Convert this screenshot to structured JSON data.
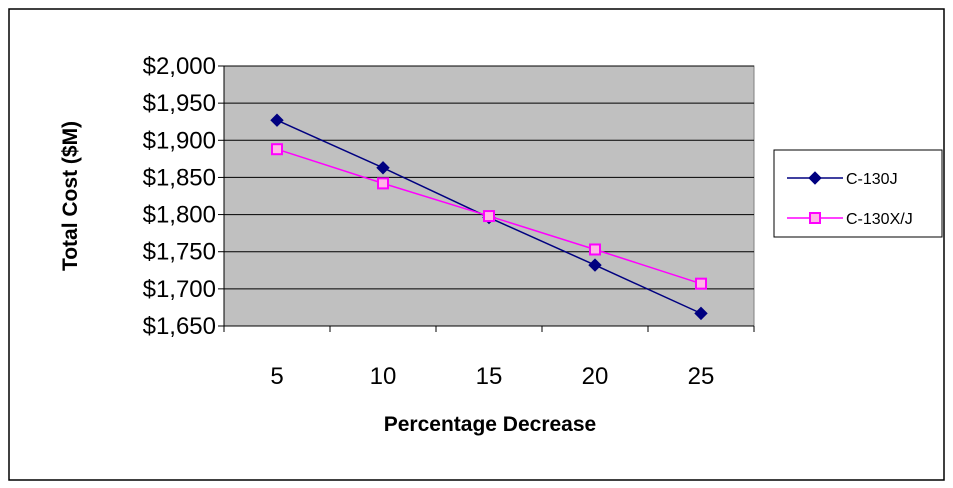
{
  "chart_data": {
    "type": "line",
    "title": "",
    "xlabel": "Percentage Decrease",
    "ylabel": "Total Cost ($M)",
    "categories": [
      "5",
      "10",
      "15",
      "20",
      "25"
    ],
    "y_tick_labels": [
      "$1,650",
      "$1,700",
      "$1,750",
      "$1,800",
      "$1,850",
      "$1,900",
      "$1,950",
      "$2,000"
    ],
    "y_ticks": [
      1650,
      1700,
      1750,
      1800,
      1850,
      1900,
      1950,
      2000
    ],
    "ylim": [
      1650,
      2000
    ],
    "grid": true,
    "legend_position": "right",
    "plot_background": "#C0C0C0",
    "series": [
      {
        "name": "C-130J",
        "values": [
          1927,
          1863,
          1796,
          1732,
          1667
        ],
        "color": "#000080",
        "marker": "diamond"
      },
      {
        "name": "C-130X/J",
        "values": [
          1888,
          1842,
          1798,
          1753,
          1707
        ],
        "color": "#FF00FF",
        "marker": "square"
      }
    ]
  }
}
